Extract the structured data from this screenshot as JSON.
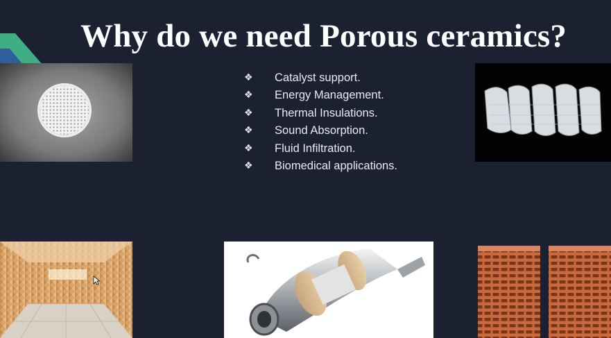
{
  "slide": {
    "title": "Why do we need Porous ceramics?",
    "bullet_icon": "diamond-bullet-icon",
    "bullets": [
      "Catalyst support.",
      "Energy Management.",
      "Thermal Insulations.",
      "Sound Absorption.",
      "Fluid Infiltration.",
      "Biomedical applications."
    ]
  },
  "colors": {
    "background": "#1b2130",
    "title": "#ffffff",
    "text": "#e9ebf0",
    "accent_green": "#3fae85",
    "accent_blue": "#2e5f9a"
  },
  "images": {
    "ceramic_filter": "ceramic-filter-disc-photo",
    "bone_scaffold": "porous-bone-scaffold-photo",
    "anechoic_chamber": "sound-absorbing-chamber-photo",
    "catalytic_converter": "catalytic-converter-cutaway-photo",
    "clay_bricks": "perforated-clay-bricks-photo"
  }
}
